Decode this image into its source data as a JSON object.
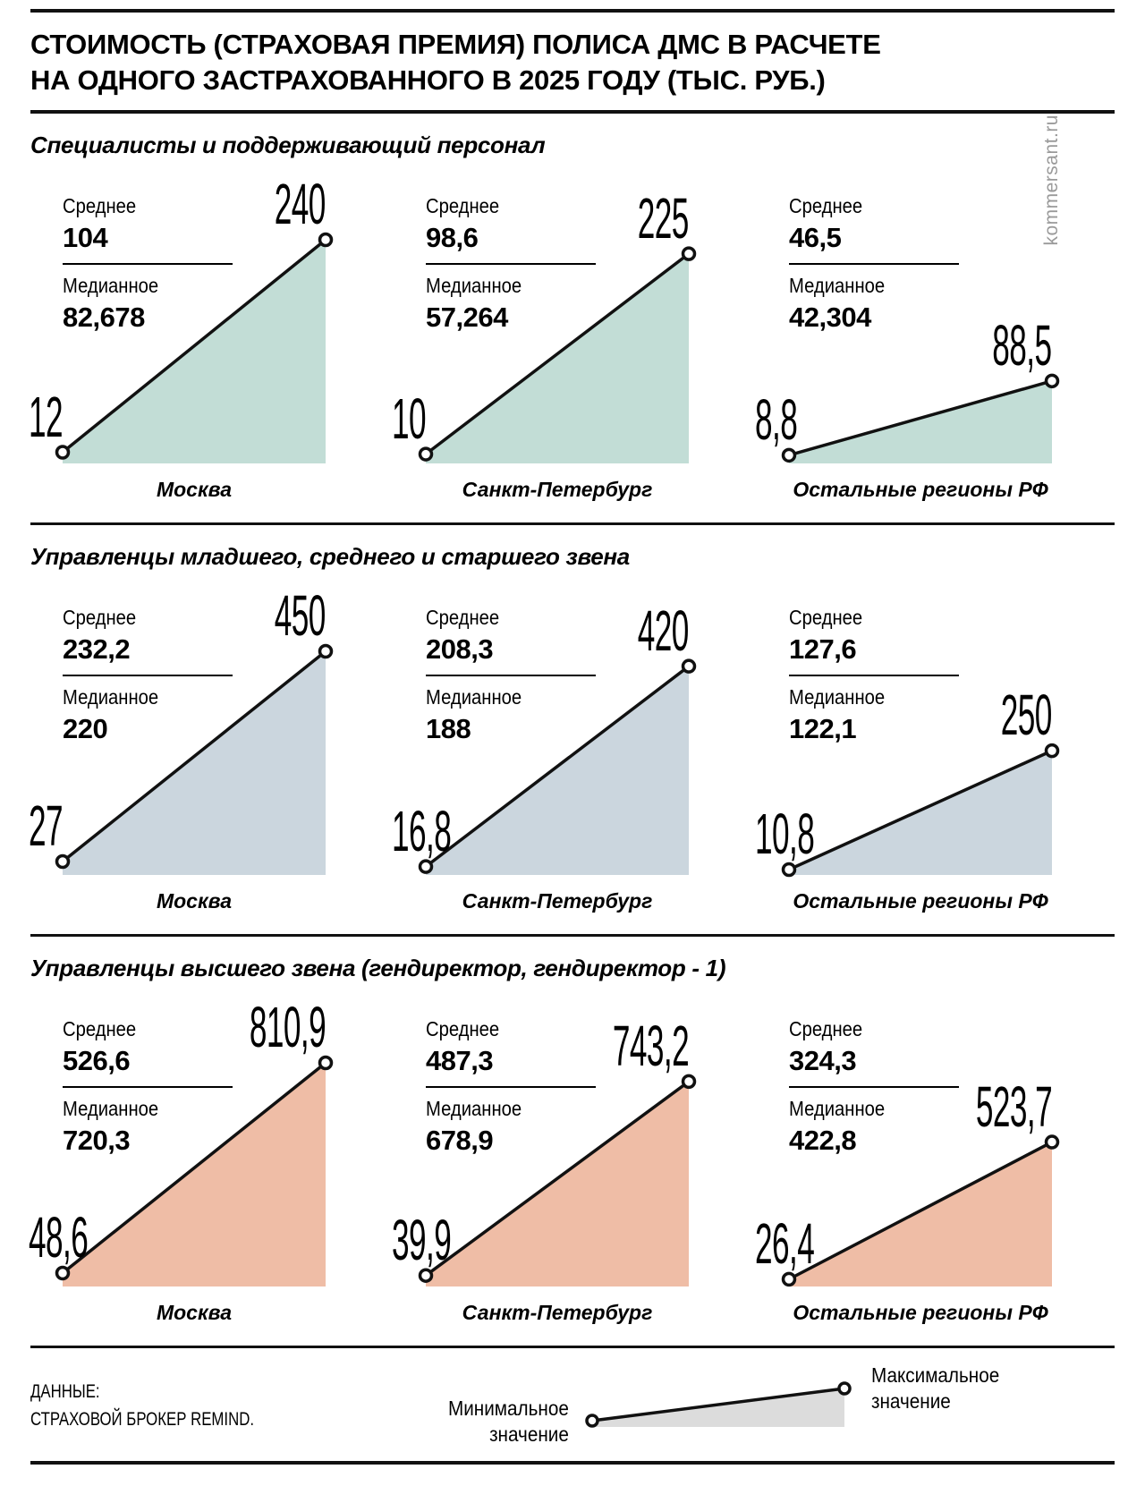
{
  "title": {
    "line1": "СТОИМОСТЬ (СТРАХОВАЯ ПРЕМИЯ) ПОЛИСА ДМС В РАСЧЕТЕ",
    "line2": "НА ОДНОГО ЗАСТРАХОВАННОГО В 2025 ГОДУ (ТЫС. РУБ.)"
  },
  "watermark": "kommersant.ru",
  "labels": {
    "average": "Среднее",
    "median": "Медианное"
  },
  "sections": [
    {
      "heading": "Специалисты и поддерживающий персонал",
      "color": "#c2ddd6",
      "charts": [
        {
          "region": "Москва",
          "average": "104",
          "median": "82,678",
          "min": "12",
          "max": "240",
          "min_v": 12,
          "max_v": 240
        },
        {
          "region": "Санкт-Петербург",
          "average": "98,6",
          "median": "57,264",
          "min": "10",
          "max": "225",
          "min_v": 10,
          "max_v": 225
        },
        {
          "region": "Остальные регионы РФ",
          "average": "46,5",
          "median": "42,304",
          "min": "8,8",
          "max": "88,5",
          "min_v": 8.8,
          "max_v": 88.5
        }
      ]
    },
    {
      "heading": "Управленцы младшего, среднего и старшего звена",
      "color": "#cbd6de",
      "charts": [
        {
          "region": "Москва",
          "average": "232,2",
          "median": "220",
          "min": "27",
          "max": "450",
          "min_v": 27,
          "max_v": 450
        },
        {
          "region": "Санкт-Петербург",
          "average": "208,3",
          "median": "188",
          "min": "16,8",
          "max": "420",
          "min_v": 16.8,
          "max_v": 420
        },
        {
          "region": "Остальные регионы РФ",
          "average": "127,6",
          "median": "122,1",
          "min": "10,8",
          "max": "250",
          "min_v": 10.8,
          "max_v": 250
        }
      ]
    },
    {
      "heading": "Управленцы высшего звена (гендиректор, гендиректор - 1)",
      "color": "#efbda6",
      "charts": [
        {
          "region": "Москва",
          "average": "526,6",
          "median": "720,3",
          "min": "48,6",
          "max": "810,9",
          "min_v": 48.6,
          "max_v": 810.9
        },
        {
          "region": "Санкт-Петербург",
          "average": "487,3",
          "median": "678,9",
          "min": "39,9",
          "max": "743,2",
          "min_v": 39.9,
          "max_v": 743.2
        },
        {
          "region": "Остальные регионы РФ",
          "average": "324,3",
          "median": "422,8",
          "min": "26,4",
          "max": "523,7",
          "min_v": 26.4,
          "max_v": 523.7
        }
      ]
    }
  ],
  "footer": {
    "source_line1": "ДАННЫЕ:",
    "source_line2": "СТРАХОВОЙ БРОКЕР REMIND.",
    "legend_min_line1": "Минимальное",
    "legend_min_line2": "значение",
    "legend_max_line1": "Максимальное",
    "legend_max_line2": "значение",
    "legend_fill": "#dcdcdc"
  },
  "chart_data": [
    {
      "type": "area",
      "title": "Специалисты и поддерживающий персонал",
      "categories": [
        "Москва",
        "Санкт-Петербург",
        "Остальные регионы РФ"
      ],
      "series": [
        {
          "name": "Минимальное значение",
          "values": [
            12,
            10,
            8.8
          ]
        },
        {
          "name": "Максимальное значение",
          "values": [
            240,
            225,
            88.5
          ]
        },
        {
          "name": "Среднее",
          "values": [
            104,
            98.6,
            46.5
          ]
        },
        {
          "name": "Медианное",
          "values": [
            82.678,
            57.264,
            42.304
          ]
        }
      ],
      "ylabel": "тыс. руб.",
      "legend_position": "bottom",
      "grid": false
    },
    {
      "type": "area",
      "title": "Управленцы младшего, среднего и старшего звена",
      "categories": [
        "Москва",
        "Санкт-Петербург",
        "Остальные регионы РФ"
      ],
      "series": [
        {
          "name": "Минимальное значение",
          "values": [
            27,
            16.8,
            10.8
          ]
        },
        {
          "name": "Максимальное значение",
          "values": [
            450,
            420,
            250
          ]
        },
        {
          "name": "Среднее",
          "values": [
            232.2,
            208.3,
            127.6
          ]
        },
        {
          "name": "Медианное",
          "values": [
            220,
            188,
            122.1
          ]
        }
      ],
      "ylabel": "тыс. руб.",
      "legend_position": "bottom",
      "grid": false
    },
    {
      "type": "area",
      "title": "Управленцы высшего звена (гендиректор, гендиректор - 1)",
      "categories": [
        "Москва",
        "Санкт-Петербург",
        "Остальные регионы РФ"
      ],
      "series": [
        {
          "name": "Минимальное значение",
          "values": [
            48.6,
            39.9,
            26.4
          ]
        },
        {
          "name": "Максимальное значение",
          "values": [
            810.9,
            743.2,
            523.7
          ]
        },
        {
          "name": "Среднее",
          "values": [
            526.6,
            487.3,
            324.3
          ]
        },
        {
          "name": "Медианное",
          "values": [
            720.3,
            678.9,
            422.8
          ]
        }
      ],
      "ylabel": "тыс. руб.",
      "legend_position": "bottom",
      "grid": false
    }
  ]
}
